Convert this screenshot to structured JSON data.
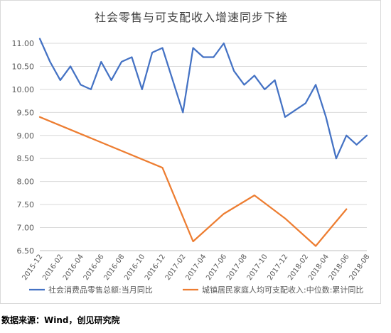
{
  "chart_data": {
    "type": "line",
    "title": "社会零售与可支配收入增速同步下挫",
    "xlabel": "",
    "ylabel": "",
    "ylim": [
      6.5,
      11.5
    ],
    "yticks": [
      "6.50",
      "7.00",
      "7.50",
      "8.00",
      "8.50",
      "9.00",
      "9.50",
      "10.00",
      "10.50",
      "11.00"
    ],
    "x_categories": [
      "2015-12",
      "2016-01",
      "2016-02",
      "2016-03",
      "2016-04",
      "2016-05",
      "2016-06",
      "2016-07",
      "2016-08",
      "2016-09",
      "2016-10",
      "2016-11",
      "2016-12",
      "2017-01",
      "2017-02",
      "2017-03",
      "2017-04",
      "2017-05",
      "2017-06",
      "2017-07",
      "2017-08",
      "2017-09",
      "2017-10",
      "2017-11",
      "2017-12",
      "2018-01",
      "2018-02",
      "2018-03",
      "2018-04",
      "2018-05",
      "2018-06",
      "2018-07",
      "2018-08"
    ],
    "xtick_labels": [
      "2015-12",
      "2016-02",
      "2016-04",
      "2016-06",
      "2016-08",
      "2016-10",
      "2016-12",
      "2017-02",
      "2017-04",
      "2017-06",
      "2017-08",
      "2017-10",
      "2017-12",
      "2018-02",
      "2018-04",
      "2018-06",
      "2018-08"
    ],
    "grid": "horizontal",
    "legend_position": "bottom",
    "series": [
      {
        "name": "社会消费品零售总额:当月同比",
        "color": "#4472C4",
        "values": [
          11.1,
          10.6,
          10.2,
          10.5,
          10.1,
          10.0,
          10.6,
          10.2,
          10.6,
          10.7,
          10.0,
          10.8,
          10.9,
          10.2,
          9.5,
          10.9,
          10.7,
          10.7,
          11.0,
          10.4,
          10.1,
          10.3,
          10.0,
          10.2,
          9.4,
          9.55,
          9.7,
          10.1,
          9.4,
          8.5,
          9.0,
          8.8,
          9.0
        ]
      },
      {
        "name": "城镇居民家庭人均可支配收入:中位数:累计同比",
        "color": "#ED7D31",
        "points": [
          {
            "x": "2015-12",
            "y": 9.4
          },
          {
            "x": "2016-12",
            "y": 8.3
          },
          {
            "x": "2017-03",
            "y": 6.7
          },
          {
            "x": "2017-06",
            "y": 7.3
          },
          {
            "x": "2017-09",
            "y": 7.7
          },
          {
            "x": "2017-12",
            "y": 7.2
          },
          {
            "x": "2018-03",
            "y": 6.6
          },
          {
            "x": "2018-06",
            "y": 7.4
          }
        ]
      }
    ]
  },
  "source_text": "数据来源：Wind，创见研究院"
}
